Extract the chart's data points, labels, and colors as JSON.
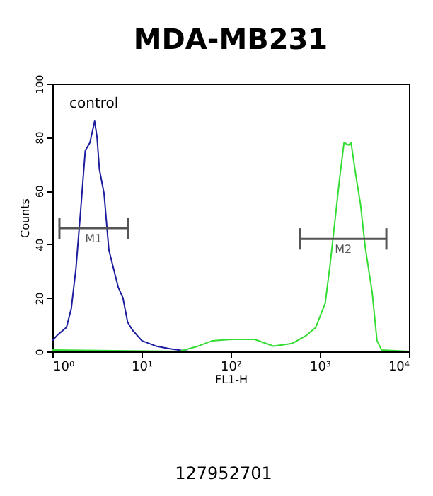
{
  "chart_data": {
    "type": "line",
    "title": "MDA-MB231",
    "xlabel": "FL1-H",
    "ylabel": "Counts",
    "log": "x",
    "xlim": [
      1,
      10000
    ],
    "xticks": [
      {
        "value": 1,
        "label": "10⁰"
      },
      {
        "value": 10,
        "label": "10¹"
      },
      {
        "value": 100,
        "label": "10²"
      },
      {
        "value": 1000,
        "label": "10³"
      },
      {
        "value": 10000,
        "label": "10⁴"
      }
    ],
    "ylim": [
      0,
      100
    ],
    "yticks": [
      0,
      20,
      40,
      60,
      80,
      100
    ],
    "grid": false,
    "legend": false,
    "series": [
      {
        "name": "control",
        "color": "#1c1c9e",
        "x": [
          1.0,
          1.13,
          1.44,
          1.63,
          1.84,
          2.07,
          2.34,
          2.64,
          2.98,
          3.17,
          3.37,
          3.8,
          4.3,
          4.85,
          5.48,
          6.19,
          6.98,
          7.9,
          10.1,
          14.5,
          20.8,
          33.9,
          10000
        ],
        "values": [
          4,
          6,
          9,
          16,
          31,
          52,
          75,
          78,
          86,
          80,
          68,
          59,
          38,
          31,
          24,
          20,
          11,
          8,
          4,
          2,
          1,
          0,
          0
        ]
      },
      {
        "color": "#33dd33",
        "x": [
          1.0,
          26.6,
          43.3,
          62.3,
          101,
          186,
          302,
          491,
          708,
          902,
          1150,
          1300,
          1470,
          1660,
          1870,
          2110,
          2240,
          2530,
          2860,
          3230,
          3870,
          4380,
          4940,
          10000
        ],
        "values": [
          0.5,
          0,
          2,
          4,
          4.5,
          4.5,
          2,
          3,
          6,
          9,
          18,
          32,
          48,
          64,
          78,
          77,
          78,
          66,
          55,
          39,
          22,
          4,
          0.5,
          0
        ]
      },
      {
        "name": "M1",
        "type": "line",
        "color": "#555555",
        "x": [
          1.2,
          7.0
        ],
        "values": [
          46,
          46
        ],
        "errors": [
          4,
          4
        ]
      },
      {
        "name": "M2",
        "type": "line",
        "color": "#555555",
        "x": [
          604,
          5580
        ],
        "values": [
          42,
          42
        ],
        "errors": [
          4,
          4
        ]
      }
    ],
    "annotations": [
      "127952701"
    ]
  }
}
